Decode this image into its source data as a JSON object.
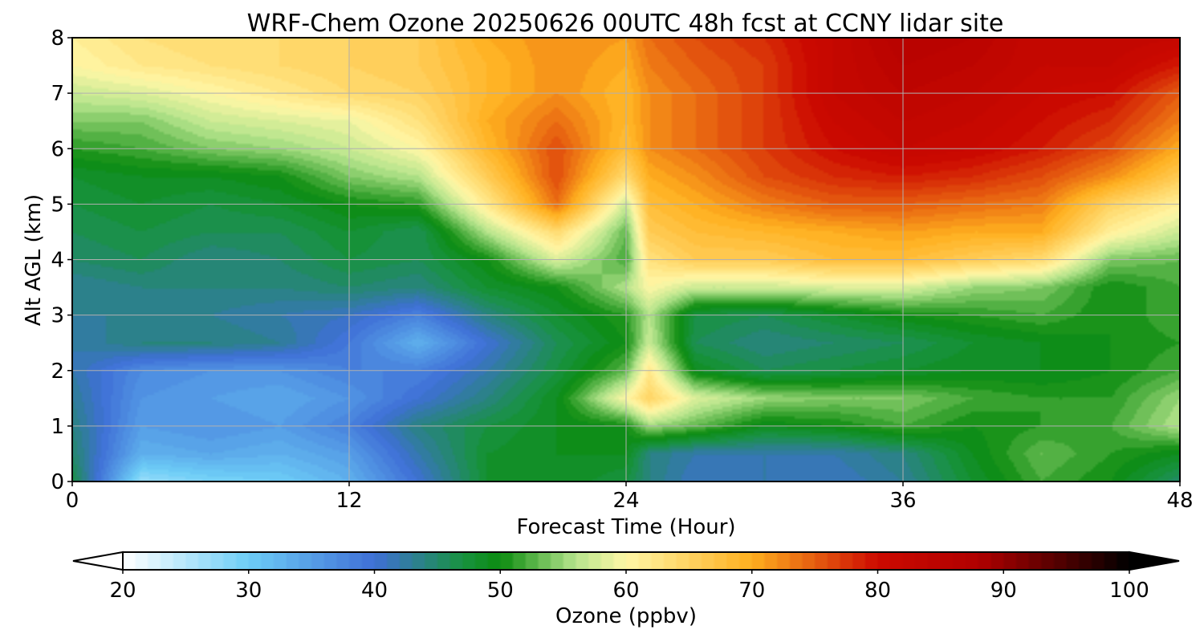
{
  "chart_data": {
    "type": "heatmap",
    "title": "WRF-Chem Ozone  20250626 00UTC 48h fcst at CCNY lidar site",
    "xlabel": "Forecast Time (Hour)",
    "ylabel": "Alt AGL (km)",
    "xlim": [
      0,
      48
    ],
    "ylim": [
      0,
      8
    ],
    "x_ticks": [
      "0",
      "12",
      "24",
      "36",
      "48"
    ],
    "y_ticks": [
      "0",
      "1",
      "2",
      "3",
      "4",
      "5",
      "6",
      "7",
      "8"
    ],
    "grid": true,
    "x": [
      0,
      3,
      6,
      9,
      12,
      15,
      18,
      21,
      24,
      25,
      27,
      30,
      33,
      36,
      39,
      42,
      45,
      48
    ],
    "y": [
      0,
      0.5,
      1,
      1.5,
      2,
      2.5,
      3,
      3.5,
      4,
      4.5,
      5,
      5.5,
      6,
      6.5,
      7,
      7.5,
      8
    ],
    "z": [
      [
        47,
        27,
        29,
        30,
        33,
        40,
        48,
        49,
        47,
        44,
        41,
        42,
        41,
        43,
        48,
        52,
        50,
        45
      ],
      [
        45,
        33,
        34,
        33,
        35,
        42,
        48,
        49,
        49,
        44,
        42,
        42,
        42,
        44,
        49,
        53,
        51,
        49
      ],
      [
        44,
        35,
        36,
        35,
        38,
        44,
        47,
        49,
        50,
        55,
        53,
        49,
        50,
        52,
        50,
        51,
        52,
        56
      ],
      [
        43,
        36,
        35,
        34,
        36,
        40,
        44,
        49,
        60,
        65,
        58,
        55,
        54,
        54,
        52,
        51,
        51,
        55
      ],
      [
        42,
        37,
        36,
        36,
        38,
        38,
        42,
        47,
        53,
        62,
        49,
        46,
        47,
        48,
        49,
        49,
        50,
        52
      ],
      [
        42,
        44,
        44,
        43,
        39,
        33,
        40,
        46,
        50,
        57,
        46,
        44,
        45,
        46,
        48,
        49,
        50,
        51
      ],
      [
        43,
        43,
        43,
        42,
        41,
        38,
        44,
        48,
        51,
        56,
        47,
        46,
        48,
        50,
        51,
        52,
        50,
        52
      ],
      [
        43,
        44,
        44,
        44,
        45,
        44,
        48,
        50,
        56,
        60,
        57,
        57,
        58,
        58,
        55,
        54,
        50,
        52
      ],
      [
        45,
        46,
        44,
        45,
        47,
        46,
        50,
        58,
        52,
        63,
        66,
        66,
        68,
        68,
        66,
        64,
        54,
        53
      ],
      [
        46,
        47,
        46,
        46,
        48,
        46,
        56,
        64,
        53,
        66,
        68,
        69,
        70,
        71,
        70,
        70,
        61,
        57
      ],
      [
        47,
        48,
        47,
        48,
        50,
        51,
        62,
        74,
        57,
        68,
        70,
        73,
        75,
        75,
        74,
        73,
        65,
        61
      ],
      [
        48,
        49,
        49,
        50,
        54,
        56,
        66,
        76,
        64,
        70,
        72,
        76,
        78,
        79,
        78,
        76,
        72,
        66
      ],
      [
        51,
        52,
        54,
        55,
        57,
        60,
        69,
        76,
        68,
        72,
        74,
        77,
        80,
        82,
        81,
        79,
        76,
        70
      ],
      [
        54,
        54,
        57,
        58,
        59,
        63,
        70,
        74,
        69,
        72,
        74,
        77,
        81,
        83,
        82,
        80,
        78,
        73
      ],
      [
        57,
        58,
        60,
        62,
        64,
        65,
        69,
        72,
        69,
        72,
        74,
        77,
        82,
        84,
        83,
        81,
        80,
        75
      ],
      [
        60,
        62,
        63,
        64,
        65,
        66,
        69,
        72,
        70,
        73,
        75,
        77,
        82,
        85,
        84,
        82,
        82,
        79
      ],
      [
        61,
        63,
        64,
        64,
        65,
        66,
        70,
        72,
        71,
        74,
        76,
        78,
        82,
        86,
        85,
        82,
        83,
        82
      ]
    ],
    "colorbar": {
      "label": "Ozone  (ppbv)",
      "min": 20,
      "max": 100,
      "extend": "both",
      "ticks": [
        "20",
        "30",
        "40",
        "50",
        "60",
        "70",
        "80",
        "90",
        "100"
      ],
      "colors": [
        "#ffffff",
        "#6dcdf7",
        "#3f6fd6",
        "#189240",
        "#0c8c10",
        "#b7e58d",
        "#fff7a6",
        "#ffaf1e",
        "#cc0a00",
        "#b00000",
        "#000000"
      ],
      "stops": [
        20,
        30,
        40,
        47,
        50,
        56,
        60,
        70,
        80,
        88,
        100
      ]
    }
  }
}
